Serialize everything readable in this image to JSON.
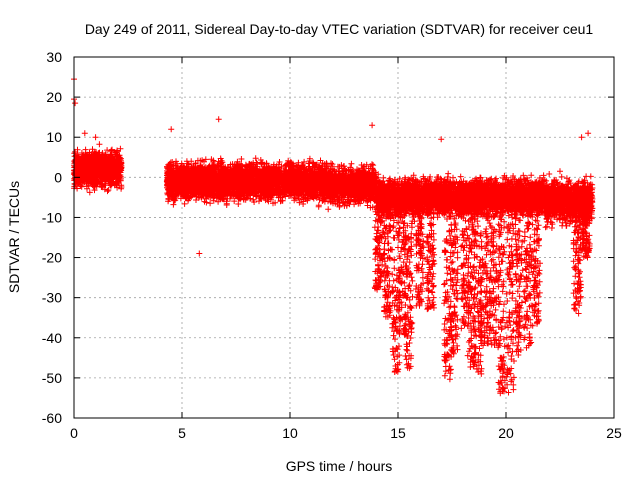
{
  "chart_data": {
    "type": "scatter",
    "title": "Day 249 of 2011, Sidereal Day-to-day VTEC variation (SDTVAR) for receiver ceu1",
    "xlabel": "GPS time / hours",
    "ylabel": "SDTVAR / TECUs",
    "xlim": [
      0,
      25
    ],
    "ylim": [
      -60,
      30
    ],
    "xticks": [
      0,
      5,
      10,
      15,
      20,
      25
    ],
    "yticks": [
      -60,
      -50,
      -40,
      -30,
      -20,
      -10,
      0,
      10,
      20,
      30
    ],
    "grid": true,
    "marker": "+",
    "color": "#ff0000",
    "series": [
      {
        "name": "SDTVAR",
        "density_bands": [
          {
            "x_range": [
              0.0,
              2.2
            ],
            "y_center": 2,
            "y_spread": 7
          },
          {
            "x_range": [
              4.3,
              11.5
            ],
            "y_center": -1,
            "y_spread": 7
          },
          {
            "x_range": [
              11.5,
              14.0
            ],
            "y_center": -2,
            "y_spread": 7
          },
          {
            "x_range": [
              14.0,
              21.8
            ],
            "y_center": -5,
            "y_spread": 7
          },
          {
            "x_range": [
              21.8,
              24.0
            ],
            "y_center": -6,
            "y_spread": 8
          }
        ],
        "dips": [
          {
            "x": 14.1,
            "min": -28
          },
          {
            "x": 14.5,
            "min": -35
          },
          {
            "x": 14.9,
            "min": -49
          },
          {
            "x": 15.2,
            "min": -40
          },
          {
            "x": 15.5,
            "min": -48
          },
          {
            "x": 16.0,
            "min": -32
          },
          {
            "x": 16.5,
            "min": -33
          },
          {
            "x": 17.3,
            "min": -51
          },
          {
            "x": 17.6,
            "min": -44
          },
          {
            "x": 18.1,
            "min": -38
          },
          {
            "x": 18.4,
            "min": -48
          },
          {
            "x": 18.7,
            "min": -49
          },
          {
            "x": 19.0,
            "min": -43
          },
          {
            "x": 19.4,
            "min": -42
          },
          {
            "x": 19.8,
            "min": -54
          },
          {
            "x": 20.2,
            "min": -55
          },
          {
            "x": 20.6,
            "min": -45
          },
          {
            "x": 21.0,
            "min": -43
          },
          {
            "x": 21.4,
            "min": -37
          },
          {
            "x": 23.3,
            "min": -34
          },
          {
            "x": 23.7,
            "min": -20
          }
        ],
        "outliers": [
          {
            "x": 0.0,
            "y": 24.5
          },
          {
            "x": 0.0,
            "y": 19.5
          },
          {
            "x": 0.05,
            "y": 18.5
          },
          {
            "x": 0.5,
            "y": 11
          },
          {
            "x": 1.0,
            "y": 10
          },
          {
            "x": 4.5,
            "y": 12
          },
          {
            "x": 5.8,
            "y": -19
          },
          {
            "x": 6.7,
            "y": 14.5
          },
          {
            "x": 13.8,
            "y": 13
          },
          {
            "x": 17.0,
            "y": 9.5
          },
          {
            "x": 23.5,
            "y": 10
          },
          {
            "x": 23.8,
            "y": 11
          }
        ]
      }
    ]
  }
}
